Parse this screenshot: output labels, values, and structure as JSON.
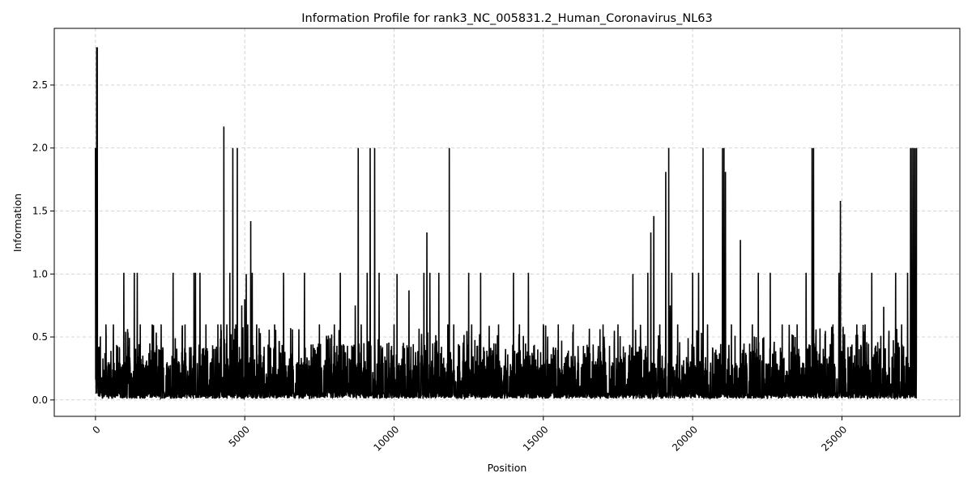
{
  "chart_data": {
    "type": "line",
    "title": "Information Profile for rank3_NC_005831.2_Human_Coronavirus_NL63",
    "xlabel": "Position",
    "ylabel": "Information",
    "xlim": [
      -1380,
      28950
    ],
    "ylim": [
      -0.13,
      2.95
    ],
    "xticks": [
      0,
      5000,
      10000,
      15000,
      20000,
      25000
    ],
    "yticks": [
      0.0,
      0.5,
      1.0,
      1.5,
      2.0,
      2.5
    ],
    "ytick_labels": [
      "0.0",
      "0.5",
      "1.0",
      "1.5",
      "2.0",
      "2.5"
    ],
    "grid": true,
    "line_color": "#000000",
    "series": [
      {
        "x": [
          0,
          20,
          40,
          60,
          80,
          100,
          150,
          250,
          350,
          500,
          600,
          800,
          950,
          1000,
          1100,
          1300,
          1400,
          1500,
          1700,
          1900,
          2000,
          2200,
          2400,
          2600,
          2800,
          3000,
          3200,
          3300,
          3350,
          3500,
          3700,
          3900,
          4100,
          4200,
          4300,
          4400,
          4500,
          4600,
          4700,
          4750,
          4800,
          4900,
          5000,
          5050,
          5100,
          5200,
          5250,
          5400,
          5600,
          5800,
          6000,
          6300,
          6500,
          7000,
          7500,
          8000,
          8200,
          8500,
          8700,
          8800,
          8900,
          9100,
          9200,
          9350,
          9500,
          10000,
          10100,
          10500,
          11000,
          11100,
          11200,
          11500,
          11800,
          11850,
          12000,
          12500,
          12600,
          12900,
          13000,
          13500,
          14000,
          14200,
          14500,
          15000,
          15500,
          16000,
          16500,
          17000,
          17500,
          18000,
          18500,
          18600,
          18700,
          18900,
          19100,
          19200,
          19250,
          19300,
          19500,
          20000,
          20200,
          20350,
          20500,
          21000,
          21050,
          21100,
          21300,
          21600,
          22000,
          22200,
          22600,
          23000,
          23500,
          23800,
          24000,
          24050,
          24500,
          24700,
          24900,
          24950,
          25500,
          26000,
          26400,
          26800,
          27000,
          27200,
          27300,
          27350,
          27400,
          27450,
          27500
        ],
        "values": [
          2.0,
          0.05,
          2.8,
          2.8,
          0.1,
          0.03,
          0.3,
          0.33,
          0.6,
          0.3,
          0.6,
          0.42,
          1.01,
          0.3,
          0.42,
          1.01,
          1.01,
          0.6,
          0.3,
          0.6,
          0.3,
          0.6,
          0.3,
          1.01,
          0.3,
          0.6,
          0.42,
          1.01,
          1.01,
          1.01,
          0.6,
          0.33,
          0.6,
          0.6,
          2.17,
          0.6,
          1.01,
          2.0,
          0.6,
          2.0,
          0.3,
          0.75,
          0.8,
          1.0,
          0.6,
          1.42,
          1.01,
          0.6,
          0.3,
          0.33,
          0.6,
          1.01,
          0.33,
          1.01,
          0.6,
          0.6,
          1.01,
          0.33,
          0.75,
          2.0,
          0.6,
          1.01,
          2.0,
          2.0,
          1.01,
          0.6,
          1.0,
          0.87,
          1.01,
          1.33,
          1.01,
          1.01,
          0.6,
          2.0,
          0.6,
          1.01,
          0.6,
          1.01,
          0.42,
          0.6,
          1.01,
          0.6,
          1.01,
          0.6,
          0.6,
          0.6,
          0.42,
          0.6,
          0.6,
          1.0,
          1.01,
          1.33,
          1.46,
          0.6,
          1.81,
          2.0,
          0.75,
          1.01,
          0.6,
          1.01,
          1.01,
          2.0,
          0.6,
          2.0,
          2.0,
          1.81,
          0.6,
          1.27,
          0.6,
          1.01,
          1.01,
          0.6,
          0.6,
          1.01,
          2.0,
          2.0,
          0.33,
          0.6,
          1.01,
          1.58,
          0.6,
          1.01,
          0.74,
          1.01,
          0.6,
          1.01,
          2.0,
          2.0,
          2.0,
          2.0,
          2.0
        ]
      }
    ]
  }
}
